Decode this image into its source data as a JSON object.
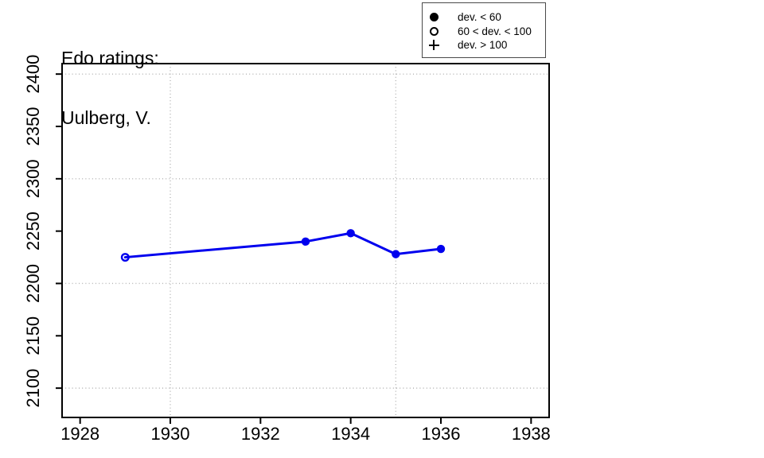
{
  "title": {
    "line1": "Edo ratings:",
    "line2": "Uulberg, V."
  },
  "legend": {
    "items": [
      {
        "symbol": "filled-circle",
        "label": "dev. < 60"
      },
      {
        "symbol": "open-circle",
        "label": "60 < dev. < 100"
      },
      {
        "symbol": "plus",
        "label": "dev. > 100"
      }
    ]
  },
  "chart_data": {
    "type": "line",
    "title": "Edo ratings: Uulberg, V.",
    "xlabel": "",
    "ylabel": "",
    "series": [
      {
        "name": "Edo rating",
        "points": [
          {
            "year": 1929,
            "rating": 2225,
            "symbol": "open-circle",
            "dev_class": "60 < dev. < 100"
          },
          {
            "year": 1933,
            "rating": 2240,
            "symbol": "filled-circle",
            "dev_class": "dev. < 60"
          },
          {
            "year": 1934,
            "rating": 2248,
            "symbol": "filled-circle",
            "dev_class": "dev. < 60"
          },
          {
            "year": 1935,
            "rating": 2228,
            "symbol": "filled-circle",
            "dev_class": "dev. < 60"
          },
          {
            "year": 1936,
            "rating": 2233,
            "symbol": "filled-circle",
            "dev_class": "dev. < 60"
          }
        ]
      }
    ],
    "x_ticks": [
      1928,
      1930,
      1932,
      1934,
      1936,
      1938
    ],
    "y_ticks": [
      2100,
      2150,
      2200,
      2250,
      2300,
      2350,
      2400
    ],
    "x_gridlines": [
      1930,
      1935
    ],
    "y_gridlines": [
      2100,
      2200,
      2300,
      2400
    ],
    "xlim": [
      1927.6,
      1938.4
    ],
    "ylim": [
      2072,
      2410
    ],
    "grid": "dotted",
    "legend_position": "top-right",
    "line_color": "#0000EE",
    "grid_color": "#b3b3b3",
    "axis_color": "#000000"
  }
}
